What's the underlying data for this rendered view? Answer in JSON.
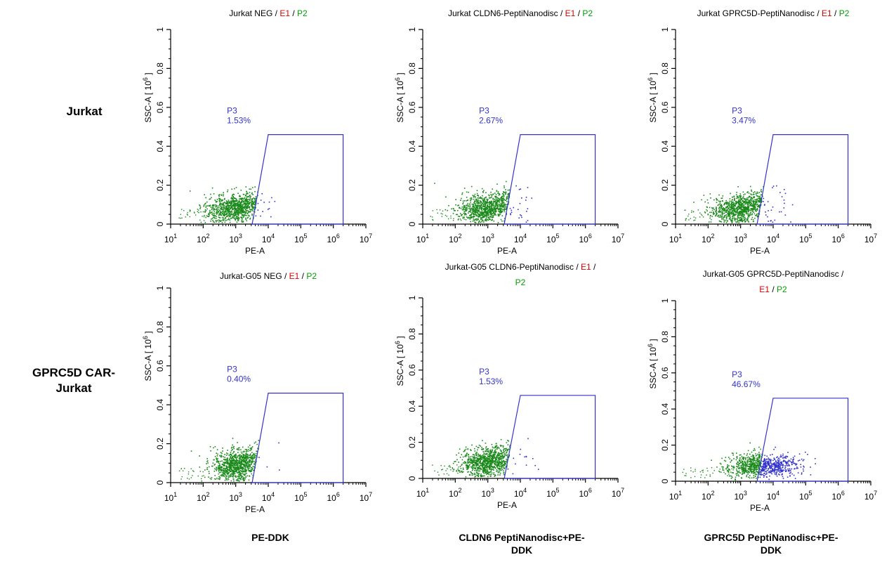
{
  "row_labels": [
    "Jurkat",
    "GPRC5D CAR-\nJurkat"
  ],
  "column_labels": [
    "",
    "",
    "",
    "PE-DDK",
    "CLDN6 PeptiNanodisc+PE-\nDDK",
    "GPRC5D PeptiNanodisc+PE-\nDDK"
  ],
  "colors": {
    "population": "#1a8a1a",
    "gate": "#3333cc",
    "gate_text": "#3333cc",
    "e1": "#e00000",
    "p2": "#00a000"
  },
  "chart_data": [
    {
      "type": "scatter",
      "title_parts": [
        [
          "Jurkat NEG / ",
          "E1",
          " / ",
          "P2"
        ]
      ],
      "xlabel": "PE-A",
      "ylabel": "SSC-A (10^6)",
      "xscale": "log",
      "xlim": [
        10,
        10000000
      ],
      "ylim": [
        0,
        1
      ],
      "x_ticks": [
        "10^1",
        "10^2",
        "10^3",
        "10^4",
        "10^5",
        "10^6",
        "10^7"
      ],
      "y_ticks": [
        "0",
        "0.2",
        "0.4",
        "0.6",
        "0.8",
        "1"
      ],
      "gate": {
        "name": "P3",
        "value": "1.53%",
        "vertices": [
          [
            3200,
            0
          ],
          [
            10000,
            0.46
          ],
          [
            2000000,
            0.46
          ],
          [
            2000000,
            0
          ]
        ]
      },
      "population": {
        "center_log_x": 3.0,
        "center_y": 0.08,
        "spread_log_x": 0.45,
        "spread_y": 0.035,
        "gated_fraction": 0.0153
      }
    },
    {
      "type": "scatter",
      "title_parts": [
        [
          "Jurkat CLDN6-PeptiNanodisc / ",
          "E1",
          " / ",
          "P2"
        ]
      ],
      "xlabel": "PE-A",
      "ylabel": "SSC-A (10^6)",
      "xscale": "log",
      "xlim": [
        10,
        10000000
      ],
      "ylim": [
        0,
        1
      ],
      "x_ticks": [
        "10^1",
        "10^2",
        "10^3",
        "10^4",
        "10^5",
        "10^6",
        "10^7"
      ],
      "y_ticks": [
        "0",
        "0.2",
        "0.4",
        "0.6",
        "0.8",
        "1"
      ],
      "gate": {
        "name": "P3",
        "value": "2.67%",
        "vertices": [
          [
            3200,
            0
          ],
          [
            10000,
            0.46
          ],
          [
            2000000,
            0.46
          ],
          [
            2000000,
            0
          ]
        ]
      },
      "population": {
        "center_log_x": 3.0,
        "center_y": 0.08,
        "spread_log_x": 0.45,
        "spread_y": 0.035,
        "gated_fraction": 0.0267
      }
    },
    {
      "type": "scatter",
      "title_parts": [
        [
          "Jurkat GPRC5D-PeptiNanodisc / ",
          "E1",
          " / ",
          "P2"
        ]
      ],
      "xlabel": "PE-A",
      "ylabel": "SSC-A (10^6)",
      "xscale": "log",
      "xlim": [
        10,
        10000000
      ],
      "ylim": [
        0,
        1
      ],
      "x_ticks": [
        "10^1",
        "10^2",
        "10^3",
        "10^4",
        "10^5",
        "10^6",
        "10^7"
      ],
      "y_ticks": [
        "0",
        "0.2",
        "0.4",
        "0.6",
        "0.8",
        "1"
      ],
      "gate": {
        "name": "P3",
        "value": "3.47%",
        "vertices": [
          [
            3200,
            0
          ],
          [
            10000,
            0.46
          ],
          [
            2000000,
            0.46
          ],
          [
            2000000,
            0
          ]
        ]
      },
      "population": {
        "center_log_x": 3.0,
        "center_y": 0.08,
        "spread_log_x": 0.45,
        "spread_y": 0.035,
        "gated_fraction": 0.0347
      }
    },
    {
      "type": "scatter",
      "title_parts": [
        [
          "Jurkat-G05 NEG / ",
          "E1",
          " / ",
          "P2"
        ]
      ],
      "xlabel": "PE-A",
      "ylabel": "SSC-A (10^6)",
      "xscale": "log",
      "xlim": [
        10,
        10000000
      ],
      "ylim": [
        0,
        1
      ],
      "x_ticks": [
        "10^1",
        "10^2",
        "10^3",
        "10^4",
        "10^5",
        "10^6",
        "10^7"
      ],
      "y_ticks": [
        "0",
        "0.2",
        "0.4",
        "0.6",
        "0.8",
        "1"
      ],
      "gate": {
        "name": "P3",
        "value": "0.40%",
        "vertices": [
          [
            3200,
            0
          ],
          [
            10000,
            0.46
          ],
          [
            2000000,
            0.46
          ],
          [
            2000000,
            0
          ]
        ]
      },
      "population": {
        "center_log_x": 3.05,
        "center_y": 0.09,
        "spread_log_x": 0.4,
        "spread_y": 0.04,
        "gated_fraction": 0.004
      }
    },
    {
      "type": "scatter",
      "title_parts": [
        [
          "Jurkat-G05 CLDN6-PeptiNanodisc / ",
          "E1",
          " /"
        ],
        [
          "P2"
        ]
      ],
      "xlabel": "PE-A",
      "ylabel": "SSC-A (10^6)",
      "xscale": "log",
      "xlim": [
        10,
        10000000
      ],
      "ylim": [
        0,
        1
      ],
      "x_ticks": [
        "10^1",
        "10^2",
        "10^3",
        "10^4",
        "10^5",
        "10^6",
        "10^7"
      ],
      "y_ticks": [
        "0",
        "0.2",
        "0.4",
        "0.6",
        "0.8",
        "1"
      ],
      "gate": {
        "name": "P3",
        "value": "1.53%",
        "vertices": [
          [
            3200,
            0
          ],
          [
            10000,
            0.46
          ],
          [
            2000000,
            0.46
          ],
          [
            2000000,
            0
          ]
        ]
      },
      "population": {
        "center_log_x": 3.0,
        "center_y": 0.09,
        "spread_log_x": 0.42,
        "spread_y": 0.04,
        "gated_fraction": 0.0153
      }
    },
    {
      "type": "scatter",
      "title_parts": [
        [
          "Jurkat-G05 GPRC5D-PeptiNanodisc /"
        ],
        [
          "E1",
          " / ",
          "P2"
        ]
      ],
      "xlabel": "PE-A",
      "ylabel": "SSC-A (10^6)",
      "xscale": "log",
      "xlim": [
        10,
        10000000
      ],
      "ylim": [
        0,
        1
      ],
      "x_ticks": [
        "10^1",
        "10^2",
        "10^3",
        "10^4",
        "10^5",
        "10^6",
        "10^7"
      ],
      "y_ticks": [
        "0",
        "0.2",
        "0.4",
        "0.6",
        "0.8",
        "1"
      ],
      "gate": {
        "name": "P3",
        "value": "46.67%",
        "vertices": [
          [
            3200,
            0
          ],
          [
            10000,
            0.46
          ],
          [
            2000000,
            0.46
          ],
          [
            2000000,
            0
          ]
        ]
      },
      "population": {
        "center_log_x": 3.6,
        "center_y": 0.09,
        "spread_log_x": 0.5,
        "spread_y": 0.035,
        "gated_fraction": 0.4667
      }
    }
  ]
}
